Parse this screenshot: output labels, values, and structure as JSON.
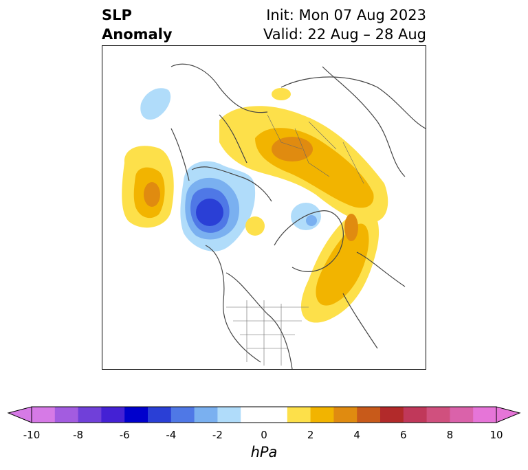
{
  "title": {
    "line1": "SLP",
    "line2": "Anomaly",
    "init": "Init: Mon 07 Aug 2023",
    "valid": "Valid: 22 Aug – 28 Aug"
  },
  "map": {
    "projection": "polar stereographic (North Pole)",
    "anomalies": [
      {
        "region": "north-pacific",
        "sign": "positive",
        "peak_hPa": 3
      },
      {
        "region": "alaska-bering",
        "sign": "negative",
        "peak_hPa": -5
      },
      {
        "region": "siberia-west",
        "sign": "positive",
        "peak_hPa": 3
      },
      {
        "region": "north-atlantic",
        "sign": "positive",
        "peak_hPa": 3
      },
      {
        "region": "greenland-arctic",
        "sign": "negative",
        "peak_hPa": -2
      },
      {
        "region": "east-siberia",
        "sign": "negative",
        "peak_hPa": -1
      }
    ]
  },
  "colorbar": {
    "unit": "hPa",
    "ticks": [
      "-10",
      "-8",
      "-6",
      "-4",
      "-2",
      "0",
      "2",
      "4",
      "6",
      "8",
      "10"
    ],
    "colors": [
      "#d67ae6",
      "#a35ce0",
      "#7040d9",
      "#4421d4",
      "#0000cc",
      "#2a3fd6",
      "#4f78e6",
      "#7ab0f0",
      "#b0dcfa",
      "#ffffff",
      "#ffffff",
      "#fde04a",
      "#f2b400",
      "#e08b10",
      "#c85a1a",
      "#b22a2a",
      "#c0385a",
      "#d0507e",
      "#da62aa",
      "#e675d8"
    ],
    "extend_low_color": "#d67ae6",
    "extend_high_color": "#e675d8"
  }
}
